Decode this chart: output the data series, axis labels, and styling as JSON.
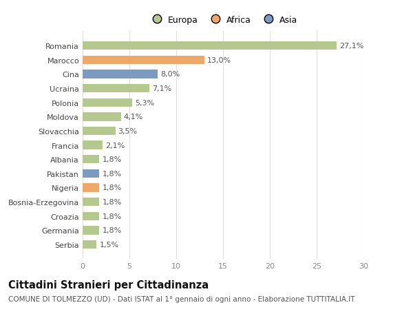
{
  "countries": [
    "Romania",
    "Marocco",
    "Cina",
    "Ucraina",
    "Polonia",
    "Moldova",
    "Slovacchia",
    "Francia",
    "Albania",
    "Pakistan",
    "Nigeria",
    "Bosnia-Erzegovina",
    "Croazia",
    "Germania",
    "Serbia"
  ],
  "values": [
    27.1,
    13.0,
    8.0,
    7.1,
    5.3,
    4.1,
    3.5,
    2.1,
    1.8,
    1.8,
    1.8,
    1.8,
    1.8,
    1.8,
    1.5
  ],
  "labels": [
    "27,1%",
    "13,0%",
    "8,0%",
    "7,1%",
    "5,3%",
    "4,1%",
    "3,5%",
    "2,1%",
    "1,8%",
    "1,8%",
    "1,8%",
    "1,8%",
    "1,8%",
    "1,8%",
    "1,5%"
  ],
  "colors": [
    "#b5c98e",
    "#f0a868",
    "#7b9cc0",
    "#b5c98e",
    "#b5c98e",
    "#b5c98e",
    "#b5c98e",
    "#b5c98e",
    "#b5c98e",
    "#7b9cc0",
    "#f0a868",
    "#b5c98e",
    "#b5c98e",
    "#b5c98e",
    "#b5c98e"
  ],
  "continents": [
    "Europa",
    "Africa",
    "Asia"
  ],
  "continent_colors": [
    "#b5c98e",
    "#f0a868",
    "#7b9cc0"
  ],
  "title": "Cittadini Stranieri per Cittadinanza",
  "subtitle": "COMUNE DI TOLMEZZO (UD) - Dati ISTAT al 1° gennaio di ogni anno - Elaborazione TUTTITALIA.IT",
  "xlim": [
    0,
    30
  ],
  "xticks": [
    0,
    5,
    10,
    15,
    20,
    25,
    30
  ],
  "bg_color": "#ffffff",
  "plot_bg_color": "#ffffff",
  "grid_color": "#dddddd",
  "bar_height": 0.6,
  "label_fontsize": 8,
  "tick_fontsize": 8,
  "ytick_fontsize": 8,
  "title_fontsize": 10.5,
  "subtitle_fontsize": 7.5
}
